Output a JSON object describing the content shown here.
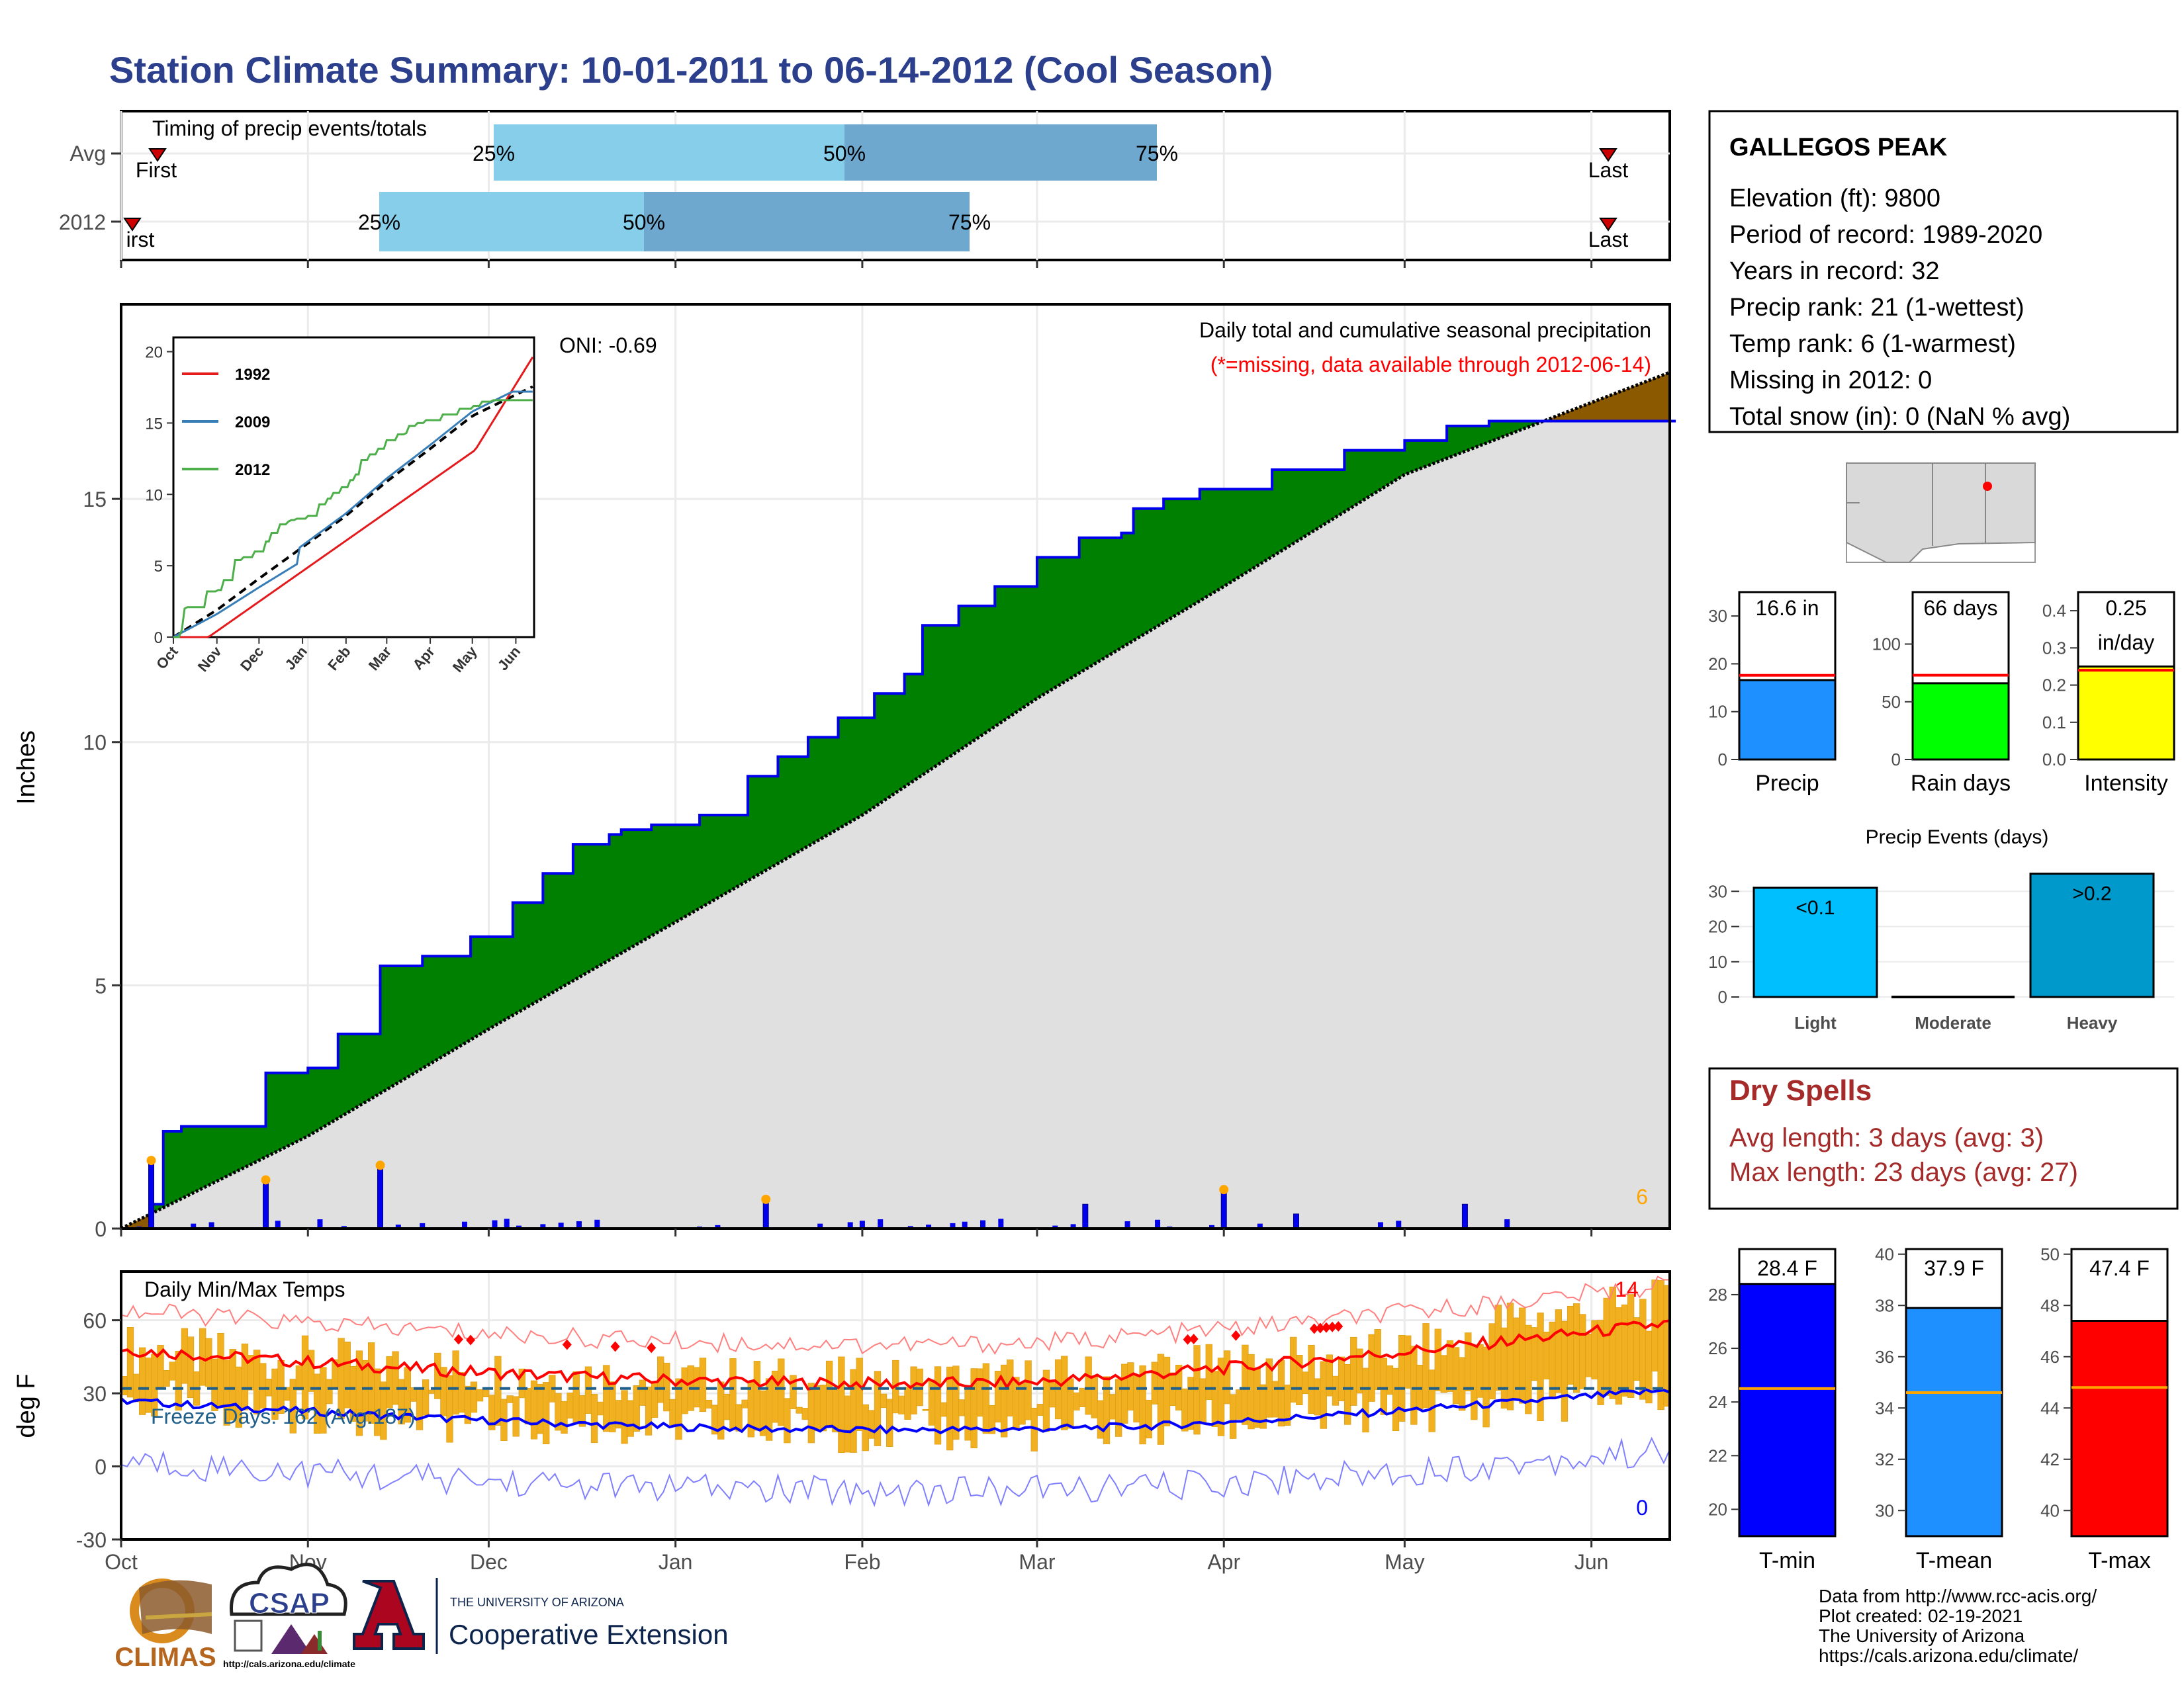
{
  "title": "Station Climate Summary: 10-01-2011 to 06-14-2012 (Cool Season)",
  "timing": {
    "label": "Timing of precip events/totals",
    "rows": [
      {
        "row": "Avg",
        "first": "First",
        "last": "Last",
        "p25": "25%",
        "p50": "50%",
        "p75": "75%"
      },
      {
        "row": "2012",
        "first": "irst",
        "last": "Last",
        "p25": "25%",
        "p50": "50%",
        "p75": "75%"
      }
    ],
    "colors": {
      "q1": "#87ceeb",
      "q2": "#6fa8cf",
      "marker": "#cc0000"
    }
  },
  "station": {
    "name": "GALLEGOS PEAK",
    "lines": [
      "Elevation (ft): 9800",
      "Period of record: 1989-2020",
      "Years in record: 32",
      "Precip rank: 21 (1-wettest)",
      "Temp rank: 6 (1-warmest)",
      "Missing in 2012: 0",
      "Total snow (in): 0 (NaN % avg)"
    ]
  },
  "precip_panel": {
    "ylabel": "Inches",
    "header": "Daily total and cumulative seasonal precipitation",
    "missing_note": "(*=missing, data available through 2012-06-14)",
    "oni": "ONI: -0.69",
    "corner_count": "6",
    "y_ticks": [
      "0",
      "5",
      "10",
      "15"
    ],
    "colors": {
      "above_avg": "#008000",
      "below_avg": "#8b5a00",
      "avg_fill": "#e0e0e0",
      "line": "#0000ee",
      "extreme": "#ffa500"
    }
  },
  "inset": {
    "y_ticks": [
      "0",
      "5",
      "10",
      "15",
      "20"
    ],
    "months": [
      "Oct",
      "Nov",
      "Dec",
      "Jan",
      "Feb",
      "Mar",
      "Apr",
      "May",
      "Jun"
    ],
    "legend": [
      {
        "name": "1992",
        "color": "#e41a1c"
      },
      {
        "name": "2009",
        "color": "#377eb8"
      },
      {
        "name": "2012",
        "color": "#4daf4a"
      }
    ]
  },
  "temp_panel": {
    "ylabel": "deg F",
    "label": "Daily Min/Max Temps",
    "freeze_label": "Freeze Days: 162 (Avg:187)",
    "max_count": "14",
    "min_count": "0",
    "y_ticks": [
      "-30",
      "0",
      "30",
      "60"
    ],
    "colors": {
      "bars": "#f0b020",
      "max_avg": "#ff0000",
      "min_avg": "#0000ff",
      "freeze_line": "#1f5f8b"
    }
  },
  "x_months": [
    "Oct",
    "Nov",
    "Dec",
    "Jan",
    "Feb",
    "Mar",
    "Apr",
    "May",
    "Jun"
  ],
  "summary_bars": [
    {
      "label": "Precip",
      "value_label": "16.6 in",
      "value": 16.6,
      "avg": 17.6,
      "ymax": 35,
      "ticks": [
        "0",
        "10",
        "20",
        "30"
      ],
      "color": "#1e90ff"
    },
    {
      "label": "Rain days",
      "value_label": "66 days",
      "value": 66,
      "avg": 73,
      "ymax": 145,
      "ticks": [
        "0",
        "50",
        "100"
      ],
      "color": "#00ff00"
    },
    {
      "label": "Intensity",
      "value_label": "0.25\nin/day",
      "value": 0.25,
      "avg": 0.24,
      "ymax": 0.45,
      "ticks": [
        "0.0",
        "0.1",
        "0.2",
        "0.3",
        "0.4"
      ],
      "color": "#ffff00"
    }
  ],
  "precip_events": {
    "title": "Precip Events (days)",
    "ticks": [
      "0",
      "10",
      "20",
      "30"
    ],
    "bars": [
      {
        "label": "Light",
        "value": 31,
        "tag": "<0.1",
        "color": "#00bfff"
      },
      {
        "label": "Moderate",
        "value": 0,
        "tag": "",
        "color": "#1e90ff"
      },
      {
        "label": "Heavy",
        "value": 35,
        "tag": ">0.2",
        "color": "#0099cc"
      }
    ]
  },
  "dry_spells": {
    "title": "Dry Spells",
    "avg_line": "Avg length: 3 days (avg: 3)",
    "max_line": "Max length: 23 days (avg: 27)",
    "color": "#a52a2a"
  },
  "temp_bars": [
    {
      "label": "T-min",
      "value_label": "28.4 F",
      "value": 28.4,
      "avg": 24.5,
      "ymin": 19,
      "ymax": 29.7,
      "ticks": [
        "20",
        "22",
        "24",
        "26",
        "28"
      ],
      "color": "#0000ff"
    },
    {
      "label": "T-mean",
      "value_label": "37.9 F",
      "value": 37.9,
      "avg": 34.6,
      "ymin": 29,
      "ymax": 40.2,
      "ticks": [
        "30",
        "32",
        "34",
        "36",
        "38",
        "40"
      ],
      "color": "#1e90ff"
    },
    {
      "label": "T-max",
      "value_label": "47.4 F",
      "value": 47.4,
      "avg": 44.8,
      "ymin": 39,
      "ymax": 50.2,
      "ticks": [
        "40",
        "42",
        "44",
        "46",
        "48",
        "50"
      ],
      "color": "#ff0000"
    }
  ],
  "credits": [
    "Data from http://www.rcc-acis.org/",
    "Plot created: 02-19-2021",
    "The University of Arizona",
    "https://cals.arizona.edu/climate/"
  ],
  "logos": {
    "climas": "CLIMAS",
    "csap": "CSAP",
    "csap_url": "http://cals.arizona.edu/climate",
    "ua_small": "THE UNIVERSITY OF ARIZONA",
    "ua_big": "Cooperative Extension"
  },
  "chart_data": {
    "type": "area",
    "title": "Daily total and cumulative seasonal precipitation",
    "ylabel": "Inches",
    "ylim": [
      0,
      19
    ],
    "series": [
      {
        "name": "2012 cumulative",
        "x": [
          "10-01",
          "10-06",
          "10-08",
          "10-11",
          "10-25",
          "11-01",
          "11-06",
          "11-13",
          "11-20",
          "11-28",
          "12-05",
          "12-10",
          "12-15",
          "12-21",
          "12-23",
          "12-28",
          "01-05",
          "01-13",
          "01-18",
          "01-23",
          "01-28",
          "02-03",
          "02-08",
          "02-11",
          "02-17",
          "02-23",
          "03-01",
          "03-08",
          "03-15",
          "03-17",
          "03-22",
          "03-28",
          "04-09",
          "04-21",
          "05-01",
          "05-08",
          "05-15",
          "06-14"
        ],
        "values": [
          0,
          0.5,
          2.0,
          2.1,
          3.2,
          3.3,
          4.0,
          5.4,
          5.6,
          6.0,
          6.7,
          7.3,
          7.9,
          8.1,
          8.2,
          8.3,
          8.5,
          9.3,
          9.7,
          10.1,
          10.5,
          11.0,
          11.4,
          12.4,
          12.8,
          13.2,
          13.8,
          14.2,
          14.3,
          14.8,
          15.0,
          15.2,
          15.6,
          16.0,
          16.2,
          16.5,
          16.6,
          16.6
        ]
      },
      {
        "name": "Average cumulative",
        "x": [
          "10-01",
          "11-01",
          "12-01",
          "01-01",
          "02-01",
          "03-01",
          "04-01",
          "05-01",
          "06-14"
        ],
        "values": [
          0,
          1.9,
          4.1,
          6.3,
          8.5,
          10.9,
          13.2,
          15.5,
          17.6
        ]
      }
    ],
    "daily_precip": {
      "x": [
        "10-06",
        "10-25",
        "11-13",
        "01-16",
        "03-09",
        "04-01",
        "04-13",
        "05-11"
      ],
      "values": [
        1.4,
        1.0,
        1.3,
        0.6,
        0.5,
        0.8,
        0.3,
        0.5
      ]
    }
  }
}
